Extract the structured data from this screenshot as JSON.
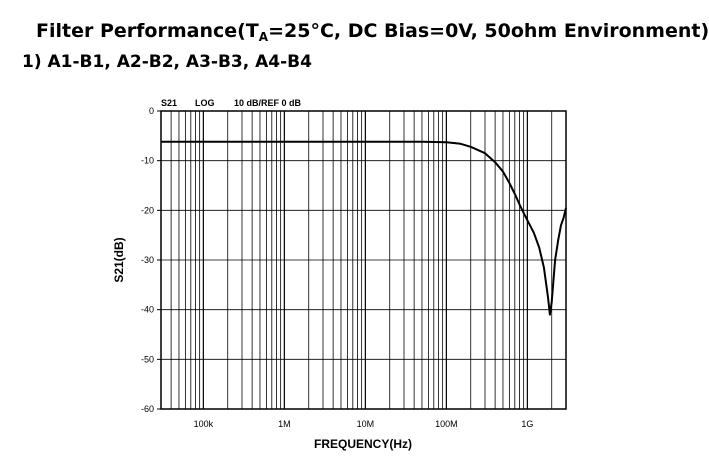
{
  "heading": {
    "title_pre": "Filter Performance(T",
    "title_sub": "A",
    "title_post": "=25°C, DC Bias=0V, 50ohm Environment)",
    "subtitle": "1) A1-B1, A2-B2, A3-B3, A4-B4"
  },
  "chart_data": {
    "type": "line",
    "header_labels": [
      "S21",
      "LOG",
      "10 dB/REF 0 dB"
    ],
    "xlabel": "FREQUENCY(Hz)",
    "ylabel": "S21(dB)",
    "x_scale": "log",
    "xlim": [
      30000,
      3000000000
    ],
    "ylim": [
      -60,
      0
    ],
    "grid": true,
    "x_ticks": [
      {
        "value": 100000,
        "label": "100k"
      },
      {
        "value": 1000000,
        "label": "1M"
      },
      {
        "value": 10000000,
        "label": "10M"
      },
      {
        "value": 100000000,
        "label": "100M"
      },
      {
        "value": 1000000000,
        "label": "1G"
      }
    ],
    "y_ticks": [
      0,
      -10,
      -20,
      -30,
      -40,
      -50,
      -60
    ],
    "series": [
      {
        "color": "#000000",
        "x": [
          30000,
          100000,
          1000000,
          10000000,
          50000000,
          100000000,
          150000000,
          200000000,
          300000000,
          400000000,
          500000000,
          600000000,
          700000000,
          800000000,
          900000000,
          1000000000,
          1200000000,
          1400000000,
          1600000000,
          1800000000,
          1900000000,
          2000000000,
          2100000000,
          2200000000,
          2400000000,
          2600000000,
          2800000000,
          3000000000
        ],
        "y": [
          -6.2,
          -6.2,
          -6.2,
          -6.2,
          -6.2,
          -6.3,
          -6.6,
          -7.2,
          -8.5,
          -10.3,
          -12.2,
          -14.5,
          -16.7,
          -18.8,
          -20.5,
          -22.0,
          -24.5,
          -27.5,
          -31.5,
          -37.5,
          -41.0,
          -38.5,
          -34.0,
          -30.0,
          -26.0,
          -23.0,
          -21.5,
          -19.5
        ]
      }
    ]
  }
}
